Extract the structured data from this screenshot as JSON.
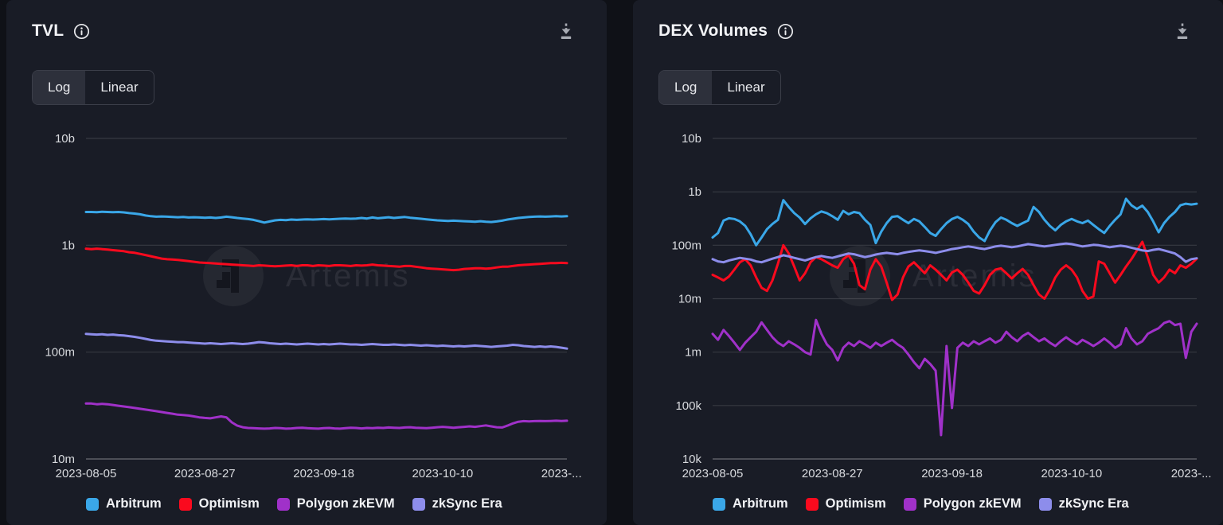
{
  "panels": [
    {
      "id": "tvl",
      "title": "TVL",
      "icons": {
        "info": "info-icon",
        "download": "download-icon"
      },
      "scale_toggle": {
        "options": [
          "Log",
          "Linear"
        ],
        "selected": "Log"
      },
      "watermark": "Artemis"
    },
    {
      "id": "dex-volumes",
      "title": "DEX Volumes",
      "icons": {
        "info": "info-icon",
        "download": "download-icon"
      },
      "scale_toggle": {
        "options": [
          "Log",
          "Linear"
        ],
        "selected": "Log"
      },
      "watermark": "Artemis"
    }
  ],
  "chart_data": [
    {
      "type": "line",
      "title": "TVL",
      "scale": "log",
      "grid": true,
      "legend_position": "bottom",
      "value_unit": "USD",
      "value_multiplier": 1000000,
      "ylim": [
        10000000.0,
        10000000000.0
      ],
      "y_ticks": [
        {
          "v": 10000000000.0,
          "label": "10b"
        },
        {
          "v": 1000000000.0,
          "label": "1b"
        },
        {
          "v": 100000000.0,
          "label": "100m"
        },
        {
          "v": 10000000.0,
          "label": "10m"
        }
      ],
      "x_ticks": [
        {
          "pos": 0,
          "label": "2023-08-05"
        },
        {
          "pos": 22,
          "label": "2023-08-27"
        },
        {
          "pos": 44,
          "label": "2023-09-18"
        },
        {
          "pos": 66,
          "label": "2023-10-10"
        },
        {
          "pos": 88,
          "label": "2023-..."
        }
      ],
      "series": [
        {
          "name": "Arbitrum",
          "color": "#3aa7e8",
          "values": [
            2050,
            2050,
            2040,
            2060,
            2050,
            2040,
            2050,
            2030,
            2000,
            1980,
            1950,
            1900,
            1870,
            1850,
            1860,
            1850,
            1840,
            1830,
            1840,
            1820,
            1830,
            1820,
            1810,
            1820,
            1800,
            1820,
            1850,
            1830,
            1800,
            1780,
            1760,
            1730,
            1680,
            1630,
            1670,
            1710,
            1730,
            1720,
            1740,
            1730,
            1740,
            1750,
            1740,
            1750,
            1760,
            1750,
            1760,
            1770,
            1780,
            1770,
            1780,
            1800,
            1780,
            1820,
            1790,
            1810,
            1830,
            1800,
            1820,
            1840,
            1810,
            1790,
            1770,
            1750,
            1730,
            1710,
            1700,
            1690,
            1700,
            1690,
            1680,
            1670,
            1660,
            1680,
            1660,
            1650,
            1670,
            1700,
            1740,
            1770,
            1800,
            1820,
            1840,
            1850,
            1860,
            1850,
            1860,
            1870,
            1860,
            1870
          ]
        },
        {
          "name": "Optimism",
          "color": "#fa0a1e",
          "values": [
            930,
            920,
            930,
            920,
            910,
            900,
            890,
            880,
            860,
            850,
            830,
            810,
            790,
            770,
            750,
            740,
            735,
            730,
            720,
            710,
            700,
            690,
            685,
            680,
            675,
            670,
            665,
            660,
            655,
            650,
            645,
            640,
            650,
            645,
            640,
            635,
            640,
            645,
            650,
            640,
            650,
            650,
            640,
            650,
            645,
            640,
            650,
            650,
            645,
            640,
            650,
            645,
            650,
            660,
            650,
            645,
            640,
            635,
            630,
            640,
            640,
            630,
            620,
            610,
            605,
            600,
            595,
            590,
            585,
            590,
            600,
            605,
            610,
            610,
            605,
            610,
            620,
            630,
            630,
            640,
            650,
            655,
            660,
            665,
            670,
            675,
            680,
            680,
            685,
            680
          ]
        },
        {
          "name": "Polygon zkEVM",
          "color": "#a031c9",
          "values": [
            33,
            33,
            32.5,
            32.8,
            32.5,
            32,
            31.5,
            31,
            30.5,
            30,
            29.5,
            29,
            28.5,
            28,
            27.5,
            27,
            26.5,
            26,
            25.8,
            25.5,
            25,
            24.5,
            24.2,
            24,
            24.5,
            25,
            24.5,
            22,
            20.5,
            19.8,
            19.5,
            19.4,
            19.3,
            19.2,
            19.3,
            19.5,
            19.4,
            19.2,
            19.3,
            19.5,
            19.6,
            19.4,
            19.3,
            19.2,
            19.4,
            19.5,
            19.3,
            19.2,
            19.4,
            19.6,
            19.5,
            19.3,
            19.5,
            19.4,
            19.6,
            19.5,
            19.7,
            19.6,
            19.5,
            19.7,
            19.8,
            19.6,
            19.5,
            19.4,
            19.6,
            19.8,
            20,
            19.8,
            19.6,
            19.8,
            20,
            20.2,
            20,
            20.3,
            20.6,
            20.2,
            19.8,
            19.7,
            20.5,
            21.5,
            22.3,
            22.6,
            22.5,
            22.6,
            22.7,
            22.6,
            22.7,
            22.8,
            22.7,
            22.8
          ]
        },
        {
          "name": "zkSync Era",
          "color": "#8d8deb",
          "values": [
            148,
            147,
            146,
            147,
            145,
            146,
            144,
            143,
            141,
            139,
            136,
            133,
            130,
            128,
            127,
            126,
            125,
            124,
            124,
            123,
            122,
            121,
            120,
            121,
            120,
            119,
            120,
            121,
            120,
            119,
            120,
            122,
            124,
            123,
            121,
            120,
            119,
            120,
            119,
            118,
            119,
            120,
            119,
            118,
            119,
            118,
            119,
            120,
            119,
            118,
            118,
            117,
            118,
            119,
            118,
            117,
            117,
            118,
            117,
            116,
            117,
            116,
            115,
            116,
            115,
            114,
            115,
            114,
            113,
            114,
            113,
            114,
            115,
            114,
            113,
            112,
            113,
            114,
            115,
            117,
            116,
            114,
            113,
            112,
            113,
            112,
            113,
            112,
            110,
            108
          ]
        }
      ]
    },
    {
      "type": "line",
      "title": "DEX Volumes",
      "scale": "log",
      "grid": true,
      "legend_position": "bottom",
      "value_unit": "USD",
      "value_multiplier": 1000000,
      "ylim": [
        10000.0,
        10000000000.0
      ],
      "y_ticks": [
        {
          "v": 10000000000.0,
          "label": "10b"
        },
        {
          "v": 1000000000.0,
          "label": "1b"
        },
        {
          "v": 100000000.0,
          "label": "100m"
        },
        {
          "v": 10000000.0,
          "label": "10m"
        },
        {
          "v": 1000000.0,
          "label": "1m"
        },
        {
          "v": 100000.0,
          "label": "100k"
        },
        {
          "v": 10000.0,
          "label": "10k"
        }
      ],
      "x_ticks": [
        {
          "pos": 0,
          "label": "2023-08-05"
        },
        {
          "pos": 22,
          "label": "2023-08-27"
        },
        {
          "pos": 44,
          "label": "2023-09-18"
        },
        {
          "pos": 66,
          "label": "2023-10-10"
        },
        {
          "pos": 88,
          "label": "2023-..."
        }
      ],
      "series": [
        {
          "name": "Arbitrum",
          "color": "#3aa7e8",
          "values": [
            140,
            170,
            290,
            320,
            310,
            280,
            230,
            160,
            100,
            140,
            200,
            250,
            300,
            700,
            520,
            400,
            330,
            250,
            320,
            380,
            430,
            400,
            350,
            300,
            440,
            380,
            420,
            400,
            300,
            240,
            110,
            180,
            260,
            340,
            350,
            300,
            260,
            310,
            280,
            220,
            170,
            150,
            200,
            260,
            310,
            340,
            300,
            250,
            180,
            140,
            120,
            190,
            270,
            330,
            300,
            260,
            230,
            260,
            290,
            520,
            420,
            300,
            230,
            190,
            240,
            280,
            310,
            280,
            260,
            290,
            240,
            200,
            170,
            230,
            300,
            380,
            740,
            560,
            480,
            550,
            420,
            280,
            175,
            260,
            340,
            420,
            560,
            600,
            580,
            600
          ]
        },
        {
          "name": "Optimism",
          "color": "#fa0a1e",
          "values": [
            28,
            25,
            22,
            26,
            35,
            48,
            55,
            42,
            25,
            16,
            14,
            22,
            45,
            100,
            70,
            40,
            22,
            30,
            48,
            60,
            55,
            48,
            42,
            38,
            55,
            65,
            45,
            18,
            15,
            35,
            55,
            40,
            20,
            9.5,
            12,
            25,
            40,
            48,
            38,
            30,
            42,
            35,
            28,
            22,
            31,
            35,
            28,
            20,
            14,
            12.5,
            18,
            28,
            35,
            37,
            30,
            24,
            30,
            36,
            28,
            18,
            12,
            10,
            15,
            25,
            35,
            42,
            35,
            25,
            14,
            10,
            11,
            50,
            45,
            30,
            20,
            28,
            40,
            55,
            80,
            116,
            60,
            28,
            20,
            25,
            35,
            30,
            42,
            38,
            45,
            56
          ]
        },
        {
          "name": "Polygon zkEVM",
          "color": "#a031c9",
          "values": [
            2.2,
            1.7,
            2.6,
            2.0,
            1.5,
            1.1,
            1.5,
            1.9,
            2.4,
            3.6,
            2.6,
            1.9,
            1.5,
            1.3,
            1.6,
            1.4,
            1.2,
            1.0,
            0.9,
            4.0,
            2.2,
            1.4,
            1.1,
            0.7,
            1.2,
            1.5,
            1.3,
            1.6,
            1.4,
            1.2,
            1.5,
            1.3,
            1.5,
            1.7,
            1.4,
            1.2,
            0.9,
            0.65,
            0.5,
            0.75,
            0.6,
            0.45,
            0.028,
            1.3,
            0.09,
            1.2,
            1.5,
            1.3,
            1.6,
            1.4,
            1.6,
            1.8,
            1.5,
            1.7,
            2.4,
            1.9,
            1.6,
            2.0,
            2.3,
            1.9,
            1.6,
            1.8,
            1.5,
            1.3,
            1.6,
            1.9,
            1.6,
            1.4,
            1.7,
            1.5,
            1.3,
            1.5,
            1.8,
            1.5,
            1.2,
            1.4,
            2.8,
            1.8,
            1.4,
            1.6,
            2.2,
            2.5,
            2.8,
            3.5,
            3.8,
            3.2,
            3.4,
            0.78,
            2.4,
            3.4
          ]
        },
        {
          "name": "zkSync Era",
          "color": "#8d8deb",
          "values": [
            55,
            50,
            48,
            52,
            55,
            58,
            56,
            54,
            50,
            48,
            52,
            56,
            60,
            65,
            62,
            58,
            55,
            52,
            56,
            60,
            63,
            60,
            58,
            62,
            66,
            70,
            68,
            64,
            60,
            63,
            67,
            70,
            72,
            70,
            68,
            72,
            75,
            78,
            80,
            78,
            75,
            72,
            76,
            80,
            85,
            88,
            92,
            95,
            92,
            88,
            85,
            90,
            95,
            98,
            95,
            92,
            95,
            100,
            105,
            102,
            98,
            95,
            98,
            102,
            105,
            108,
            105,
            100,
            95,
            98,
            102,
            100,
            96,
            92,
            95,
            98,
            95,
            90,
            85,
            80,
            78,
            82,
            85,
            80,
            75,
            70,
            60,
            49,
            55,
            57
          ]
        }
      ]
    }
  ]
}
